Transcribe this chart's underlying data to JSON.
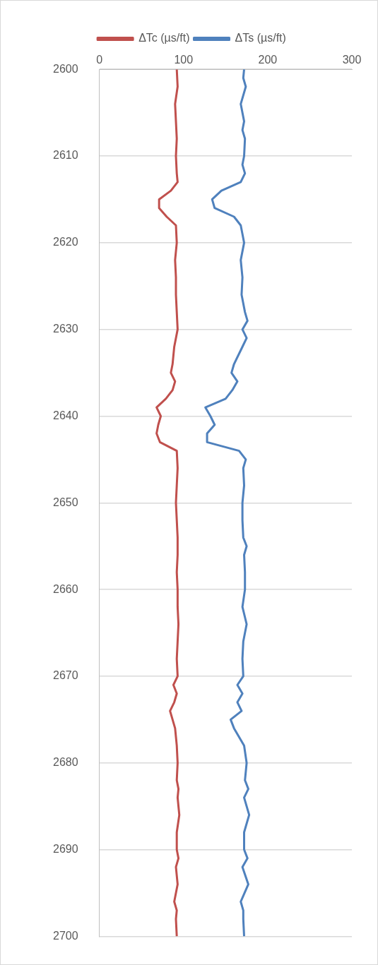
{
  "chart_data": {
    "type": "line",
    "xlim": [
      0,
      300
    ],
    "xticks": [
      0,
      100,
      200,
      300
    ],
    "ylim": [
      2700,
      2600
    ],
    "yticks": [
      2600,
      2610,
      2620,
      2630,
      2640,
      2650,
      2660,
      2670,
      2680,
      2690,
      2700
    ],
    "grid": "y",
    "legend": "top",
    "marker": "none",
    "line_style": "solid",
    "series": [
      {
        "name": "ΔTc (µs/ft)",
        "color": "#c0504d",
        "x": [
          92,
          93,
          90,
          91,
          92,
          91,
          92,
          93,
          85,
          71,
          71,
          80,
          91,
          92,
          90,
          91,
          91,
          92,
          93,
          89,
          87,
          85,
          90,
          87,
          79,
          68,
          73,
          70,
          68,
          72,
          92,
          93,
          92,
          91,
          92,
          93,
          93,
          92,
          93,
          93,
          94,
          93,
          92,
          93,
          88,
          92,
          89,
          84,
          87,
          90,
          92,
          93,
          92,
          94,
          93,
          95,
          92,
          92,
          94,
          91,
          93,
          89,
          92,
          91,
          92
        ],
        "values": [
          2600,
          2602,
          2604,
          2606,
          2608,
          2610,
          2612,
          2613,
          2614,
          2615,
          2616,
          2617,
          2618,
          2620,
          2622,
          2624,
          2626,
          2628,
          2630,
          2632,
          2634,
          2635,
          2636,
          2637,
          2638,
          2639,
          2640,
          2641,
          2642,
          2643,
          2644,
          2646,
          2648,
          2650,
          2652,
          2654,
          2656,
          2658,
          2660,
          2662,
          2664,
          2666,
          2668,
          2670,
          2671,
          2672,
          2673,
          2674,
          2675,
          2676,
          2678,
          2680,
          2682,
          2683,
          2684,
          2686,
          2688,
          2690,
          2691,
          2692,
          2694,
          2696,
          2697,
          2698,
          2700
        ]
      },
      {
        "name": "ΔTs (µs/ft)",
        "color": "#4f81bd",
        "x": [
          172,
          171,
          174,
          168,
          172,
          170,
          173,
          172,
          170,
          173,
          168,
          145,
          134,
          137,
          160,
          168,
          170,
          172,
          168,
          170,
          169,
          173,
          176,
          170,
          175,
          170,
          160,
          157,
          164,
          158,
          150,
          126,
          132,
          137,
          128,
          128,
          166,
          174,
          171,
          172,
          170,
          170,
          171,
          175,
          172,
          173,
          173,
          170,
          175,
          171,
          170,
          171,
          164,
          170,
          164,
          169,
          156,
          160,
          172,
          175,
          173,
          177,
          172,
          178,
          172,
          172,
          176,
          170,
          177,
          168,
          171,
          171,
          172
        ],
        "values": [
          2600,
          2601,
          2602,
          2604,
          2606,
          2607,
          2608,
          2610,
          2611,
          2612,
          2613,
          2614,
          2615,
          2616,
          2617,
          2618,
          2619,
          2620,
          2622,
          2624,
          2626,
          2628,
          2629,
          2630,
          2631,
          2632,
          2634,
          2635,
          2636,
          2637,
          2638,
          2639,
          2640,
          2641,
          2642,
          2643,
          2644,
          2645,
          2646,
          2648,
          2650,
          2652,
          2654,
          2655,
          2656,
          2658,
          2660,
          2662,
          2664,
          2666,
          2668,
          2670,
          2671,
          2672,
          2673,
          2674,
          2675,
          2676,
          2678,
          2680,
          2682,
          2683,
          2684,
          2686,
          2688,
          2690,
          2691,
          2692,
          2694,
          2696,
          2697,
          2698,
          2700
        ]
      }
    ]
  }
}
